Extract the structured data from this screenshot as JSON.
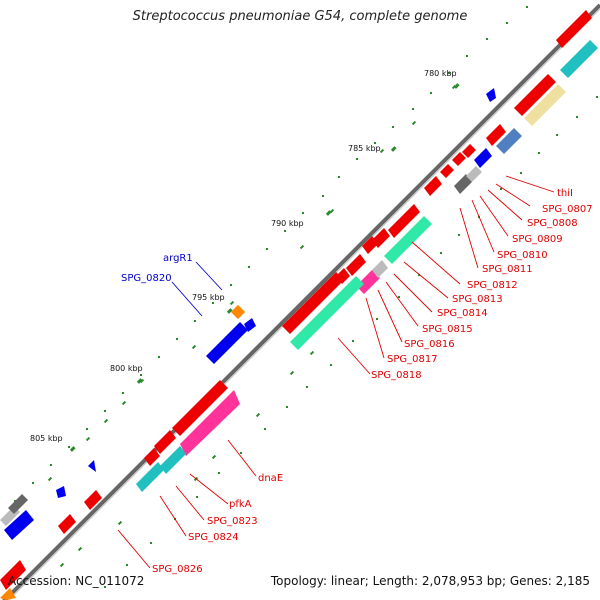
{
  "title": "Streptococcus pneumoniae G54, complete genome",
  "footer": {
    "accession": "Accession: NC_011072",
    "topology": "Topology: linear; Length: 2,078,953 bp; Genes: 2,185"
  },
  "ticks": [
    "780 kbp",
    "785 kbp",
    "790 kbp",
    "795 kbp",
    "800 kbp",
    "805 kbp"
  ],
  "labels_forward": [
    "thiI",
    "SPG_0807",
    "SPG_0808",
    "SPG_0809",
    "SPG_0810",
    "SPG_0811",
    "SPG_0812",
    "SPG_0813",
    "SPG_0814",
    "SPG_0815",
    "SPG_0816",
    "SPG_0817",
    "SPG_0818",
    "dnaE",
    "pfkA",
    "SPG_0823",
    "SPG_0824",
    "SPG_0826"
  ],
  "labels_reverse": [
    "argR1",
    "SPG_0820"
  ],
  "colors": {
    "forward_label": "#e00000",
    "reverse_label": "#0000cc",
    "backbone": "#888888",
    "forward_gene": "#ee0000",
    "reverse_gene": "#0000ee",
    "cds_teal": "#20c0c0",
    "cds_green": "#30e8a8",
    "cds_pink": "#ff3399",
    "cds_khaki": "#f0e0a0",
    "cds_steel": "#5080c0",
    "gc_skew": "#2a8a2a"
  }
}
